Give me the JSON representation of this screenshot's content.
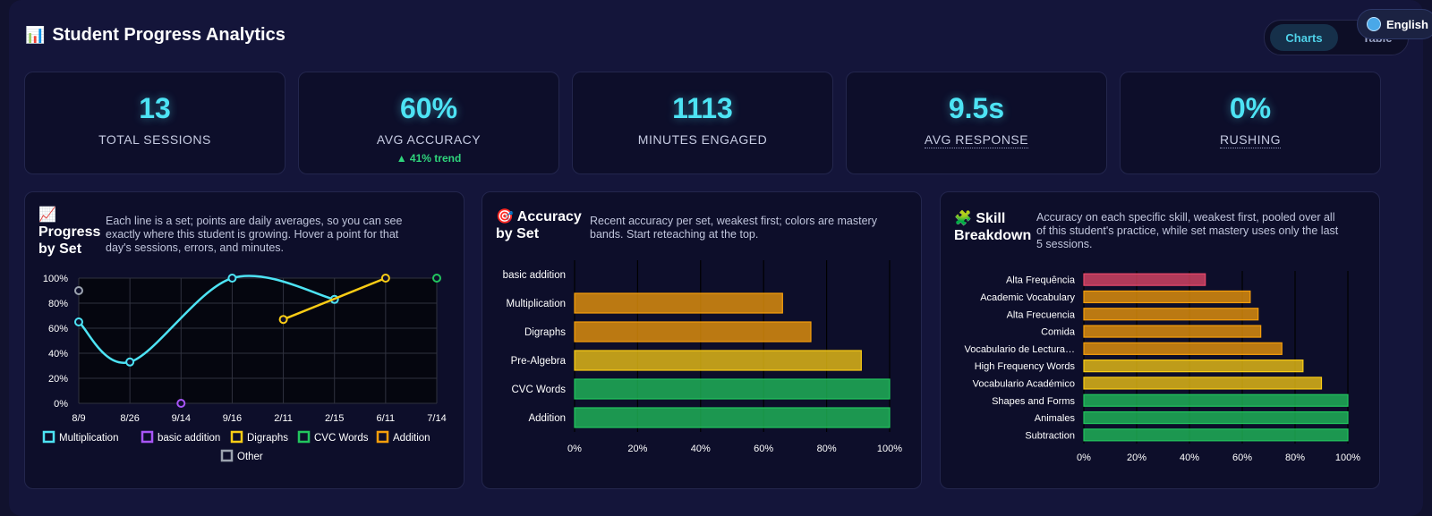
{
  "header": {
    "title": "Student Progress Analytics",
    "title_icon": "bar-chart-icon"
  },
  "view_toggle": {
    "active": "Charts",
    "other": "Table"
  },
  "language": {
    "label": "English",
    "icon": "globe-icon"
  },
  "stats": [
    {
      "value": "13",
      "label": "TOTAL SESSIONS"
    },
    {
      "value": "60%",
      "label": "AVG ACCURACY",
      "trend": "▲ 41% trend"
    },
    {
      "value": "1113",
      "label": "MINUTES ENGAGED"
    },
    {
      "value": "9.5s",
      "label": "AVG RESPONSE"
    },
    {
      "value": "0%",
      "label": "RUSHING"
    }
  ],
  "panels": {
    "progress": {
      "icon": "📈",
      "title_lines": [
        "Progress",
        "by Set"
      ],
      "desc_lines": [
        "Each line is a set; points are daily averages, so you can see",
        "exactly where this student is growing. Hover a point for that",
        "day's sessions, errors, and minutes."
      ]
    },
    "accuracy": {
      "icon": "🎯",
      "title_lines": [
        "Accuracy",
        "by Set"
      ],
      "desc_lines": [
        "Recent accuracy per set, weakest first; colors are mastery",
        "bands. Start reteaching at the top."
      ]
    },
    "skills": {
      "icon": "🧩",
      "title_lines": [
        "Skill",
        "Breakdown"
      ],
      "desc_lines": [
        "Accuracy on each specific skill, weakest first, pooled over all",
        "of this student's practice, while set mastery uses only the last",
        "5 sessions."
      ]
    }
  },
  "colors": {
    "cyan": "#4de3f4",
    "purple": "#a855f7",
    "yellow": "#facc15",
    "green": "#22c55e",
    "orange": "#f59e0b",
    "gray": "#9ca3af",
    "red": "#e8496b"
  },
  "chart_data": [
    {
      "type": "line",
      "title": "Progress by Set",
      "x": [
        "8/9",
        "8/26",
        "9/14",
        "9/16",
        "2/11",
        "2/15",
        "6/11",
        "7/14"
      ],
      "ylim": [
        0,
        100
      ],
      "yticks": [
        "0%",
        "20%",
        "40%",
        "60%",
        "80%",
        "100%"
      ],
      "legend": "bottom",
      "series": [
        {
          "name": "Multiplication",
          "color": "#4de3f4",
          "values": [
            65,
            33,
            null,
            100,
            null,
            83,
            null,
            null
          ]
        },
        {
          "name": "basic addition",
          "color": "#a855f7",
          "values": [
            null,
            null,
            0,
            null,
            null,
            null,
            null,
            null
          ]
        },
        {
          "name": "Digraphs",
          "color": "#facc15",
          "values": [
            null,
            null,
            null,
            null,
            67,
            null,
            100,
            null
          ]
        },
        {
          "name": "CVC Words",
          "color": "#22c55e",
          "values": [
            null,
            null,
            null,
            null,
            null,
            null,
            null,
            100
          ]
        },
        {
          "name": "Addition",
          "color": "#f59e0b",
          "values": [
            null,
            null,
            null,
            null,
            null,
            null,
            null,
            null
          ]
        },
        {
          "name": "Other",
          "color": "#9ca3af",
          "values": [
            90,
            null,
            null,
            null,
            null,
            null,
            null,
            null
          ]
        }
      ]
    },
    {
      "type": "bar",
      "orientation": "horizontal",
      "title": "Accuracy by Set",
      "categories": [
        "basic addition",
        "Multiplication",
        "Digraphs",
        "Pre-Algebra",
        "CVC Words",
        "Addition"
      ],
      "values": [
        0,
        66,
        75,
        91,
        100,
        100
      ],
      "xlim": [
        0,
        100
      ],
      "xticks": [
        "0%",
        "20%",
        "40%",
        "60%",
        "80%",
        "100%"
      ]
    },
    {
      "type": "bar",
      "orientation": "horizontal",
      "title": "Skill Breakdown",
      "categories": [
        "Alta Frequência",
        "Academic Vocabulary",
        "Alta Frecuencia",
        "Comida",
        "Vocabulario de Lectura…",
        "High Frequency Words",
        "Vocabulario Académico",
        "Shapes and Forms",
        "Animales",
        "Subtraction"
      ],
      "values": [
        46,
        63,
        66,
        67,
        75,
        83,
        90,
        100,
        100,
        100
      ],
      "xlim": [
        0,
        100
      ],
      "xticks": [
        "0%",
        "20%",
        "40%",
        "60%",
        "80%",
        "100%"
      ]
    }
  ]
}
